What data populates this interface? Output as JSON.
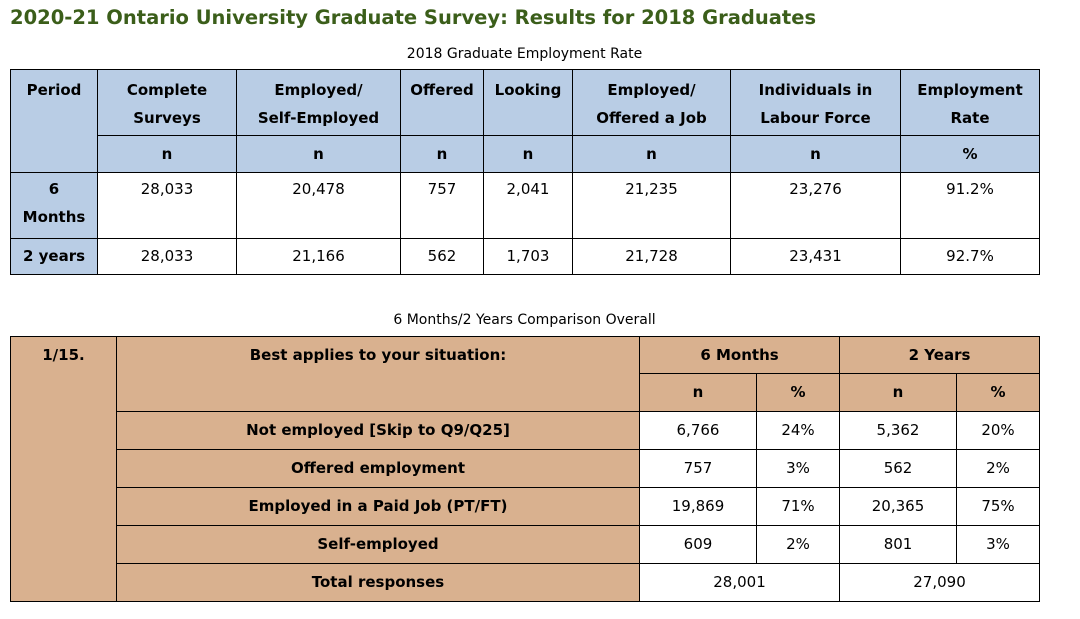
{
  "title": "2020-21 Ontario University Graduate Survey: Results for 2018 Graduates",
  "employment_table": {
    "caption": "2018 Graduate Employment Rate",
    "headers": {
      "period": "Period",
      "complete_1": "Complete",
      "complete_2": "Surveys",
      "employed_1": "Employed/",
      "employed_2": "Self-Employed",
      "offered": "Offered",
      "looking": "Looking",
      "emp_off_1": "Employed/",
      "emp_off_2": "Offered a Job",
      "labour_1": "Individuals in",
      "labour_2": "Labour Force",
      "rate_1": "Employment",
      "rate_2": "Rate"
    },
    "units": [
      "n",
      "n",
      "n",
      "n",
      "n",
      "n",
      "%"
    ],
    "rows": [
      {
        "period_1": "6",
        "period_2": "Months",
        "values": [
          "28,033",
          "20,478",
          "757",
          "2,041",
          "21,235",
          "23,276",
          "91.2%"
        ]
      },
      {
        "period_1": "2 years",
        "period_2": "",
        "values": [
          "28,033",
          "21,166",
          "562",
          "1,703",
          "21,728",
          "23,431",
          "92.7%"
        ]
      }
    ]
  },
  "comparison_table": {
    "caption": "6 Months/2 Years Comparison Overall",
    "question_id": "1/15.",
    "question": "Best applies to your situation:",
    "col_6m": "6 Months",
    "col_2y": "2 Years",
    "sub": {
      "n": "n",
      "pct": "%"
    },
    "rows": [
      {
        "label": "Not employed [Skip to Q9/Q25]",
        "n6": "6,766",
        "p6": "24%",
        "n2": "5,362",
        "p2": "20%"
      },
      {
        "label": "Offered employment",
        "n6": "757",
        "p6": "3%",
        "n2": "562",
        "p2": "2%"
      },
      {
        "label": "Employed in a Paid Job (PT/FT)",
        "n6": "19,869",
        "p6": "71%",
        "n2": "20,365",
        "p2": "75%"
      },
      {
        "label": "Self-employed",
        "n6": "609",
        "p6": "2%",
        "n2": "801",
        "p2": "3%"
      }
    ],
    "total": {
      "label": "Total responses",
      "n6": "28,001",
      "n2": "27,090"
    }
  },
  "colors": {
    "title": "#3b5e1a",
    "header_blue": "#b9cde5",
    "header_tan": "#d9b18f"
  }
}
